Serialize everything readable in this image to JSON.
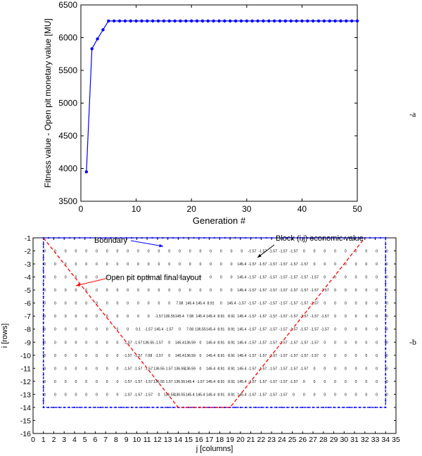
{
  "chart_data": [
    {
      "type": "line",
      "xlabel": "Generation #",
      "ylabel": "Fitness value - Open pit monetary value [MU]",
      "xlim": [
        0,
        50
      ],
      "ylim": [
        3500,
        6500
      ],
      "xticks": [
        0,
        10,
        20,
        30,
        40,
        50
      ],
      "yticks": [
        3500,
        4000,
        4500,
        5000,
        5500,
        6000,
        6500
      ],
      "grid": false,
      "panel_label": "-a",
      "series": [
        {
          "color": "#0000ff",
          "marker": "dot",
          "x": [
            1,
            2,
            3,
            4,
            5,
            6,
            7,
            8,
            9,
            10,
            11,
            12,
            13,
            14,
            15,
            16,
            17,
            18,
            19,
            20,
            21,
            22,
            23,
            24,
            25,
            26,
            27,
            28,
            29,
            30,
            31,
            32,
            33,
            34,
            35,
            36,
            37,
            38,
            39,
            40,
            41,
            42,
            43,
            44,
            45,
            46,
            47,
            48,
            49,
            50
          ],
          "y": [
            3950,
            5830,
            5980,
            6120,
            6255,
            6255,
            6255,
            6255,
            6255,
            6255,
            6255,
            6255,
            6255,
            6255,
            6255,
            6255,
            6255,
            6255,
            6255,
            6255,
            6255,
            6255,
            6255,
            6255,
            6255,
            6255,
            6255,
            6255,
            6255,
            6255,
            6255,
            6255,
            6255,
            6255,
            6255,
            6255,
            6255,
            6255,
            6255,
            6255,
            6255,
            6255,
            6255,
            6255,
            6255,
            6255,
            6255,
            6255,
            6255,
            6255
          ]
        }
      ]
    },
    {
      "type": "scatter",
      "xlabel": "j [columns]",
      "ylabel": "i [rows]",
      "xlim": [
        0,
        35
      ],
      "ylim": [
        -16,
        -1
      ],
      "xticks": [
        0,
        1,
        2,
        3,
        4,
        5,
        6,
        7,
        8,
        9,
        10,
        11,
        12,
        13,
        14,
        15,
        16,
        17,
        18,
        19,
        20,
        21,
        22,
        23,
        24,
        25,
        26,
        27,
        28,
        29,
        30,
        31,
        32,
        33,
        34,
        35
      ],
      "yticks": [
        -1,
        -2,
        -3,
        -4,
        -5,
        -6,
        -7,
        -8,
        -9,
        -10,
        -11,
        -12,
        -13,
        -14,
        -15,
        -16
      ],
      "grid": false,
      "panel_label": "-b",
      "boundary": {
        "label": "Boundary",
        "color": "#0000ff",
        "j": [
          1,
          34
        ],
        "i": [
          -14,
          -1
        ]
      },
      "pit_outline": {
        "label": "Open pit optimal final layout",
        "color": "#ff0000",
        "points": [
          [
            1,
            -1
          ],
          [
            14,
            -14
          ],
          [
            19,
            -14
          ],
          [
            32,
            -1
          ]
        ]
      },
      "annotations": [
        {
          "text": "Boundary",
          "color": "#0000ff"
        },
        {
          "text": "Block (i,j) economic value",
          "color": "#000000"
        },
        {
          "text": "Open pit optimal final layout",
          "color": "#ff0000"
        }
      ],
      "cell_values": [
        {
          "row": -2,
          "j_start": 21,
          "values": [
            "-1.57",
            "-1.57",
            "-1.57",
            "-1.57",
            "-1.57",
            "0"
          ]
        },
        {
          "row": -3,
          "j_start": 20,
          "values": [
            "145.4",
            "-1.57",
            "-1.57",
            "-1.57",
            "-1.57",
            "-1.57",
            "-1.57",
            "0"
          ]
        },
        {
          "row": -4,
          "j_start": 20,
          "values": [
            "145.4",
            "-1.57",
            "-1.57",
            "-1.57",
            "-1.57",
            "-1.57",
            "-1.57",
            "-1.57",
            "0"
          ]
        },
        {
          "row": -5,
          "j_start": 20,
          "values": [
            "145.4",
            "-1.57",
            "-1.57",
            "-1.57",
            "-1.57",
            "-1.57",
            "-1.57",
            "-1.57",
            "-1.57",
            "0"
          ]
        },
        {
          "row": -6,
          "j_start": 14,
          "values": [
            "7.08",
            "145.4",
            "145.4",
            "8.91",
            "0",
            "145.4",
            "-1.57",
            "-1.57",
            "-1.57",
            "-1.57",
            "-1.57",
            "-1.57",
            "-1.57",
            "-1.57",
            "0"
          ]
        },
        {
          "row": -7,
          "j_start": 12,
          "values": [
            "-1.57",
            "136.55",
            "145.4",
            "7.08",
            "145.4",
            "145.4",
            "8.91",
            "8.91",
            "145.4",
            "-1.57",
            "-1.57",
            "-1.57",
            "-1.57",
            "-1.57",
            "-1.57",
            "-1.57",
            "-1.57",
            "0"
          ]
        },
        {
          "row": -8,
          "j_start": 10,
          "values": [
            "0.1",
            "-1.57",
            "145.4",
            "-1.57",
            "0",
            "7.08",
            "136.55",
            "145.4",
            "8.91",
            "8.91",
            "145.4",
            "-1.57",
            "-1.57",
            "-1.57",
            "-1.57",
            "-1.57",
            "-1.57",
            "-1.57",
            "-1.57",
            "0"
          ]
        },
        {
          "row": -9,
          "j_start": 9,
          "values": [
            "-1.57",
            "-1.57",
            "136.55",
            "-1.57",
            "0",
            "145.4",
            "136.59",
            "0",
            "145.4",
            "8.91",
            "8.91",
            "145.4",
            "-1.57",
            "-1.57",
            "-1.57",
            "-1.57",
            "-1.57",
            "-1.57",
            "-1.57",
            "0"
          ]
        },
        {
          "row": -10,
          "j_start": 9,
          "values": [
            "-1.57",
            "-1.57",
            "7.08",
            "-1.57",
            "0",
            "145.4",
            "136.59",
            "0",
            "145.4",
            "8.91",
            "8.91",
            "145.4",
            "-1.57",
            "-1.57",
            "-1.57",
            "-1.57",
            "-1.57",
            "-1.57",
            "-1.57",
            "0"
          ]
        },
        {
          "row": -11,
          "j_start": 9,
          "values": [
            "-1.57",
            "-1.57",
            "-1.57",
            "136.55",
            "1.57",
            "136.55",
            "136.59",
            "0",
            "145.4",
            "8.91",
            "8.91",
            "145.4",
            "-1.57",
            "-1.57",
            "-1.57",
            "-1.57",
            "-1.57",
            "-1.57",
            "0"
          ]
        },
        {
          "row": -12,
          "j_start": 9,
          "values": [
            "-1.57",
            "-1.57",
            "-1.57",
            "136.55",
            "1.57",
            "136.55",
            "145.4",
            "-1.57",
            "145.4",
            "8.91",
            "8.91",
            "145.4",
            "-1.57",
            "-1.57",
            "-1.57",
            "-1.57",
            "-1.57",
            "0"
          ]
        },
        {
          "row": -13,
          "j_start": 9,
          "values": [
            "-1.57",
            "-1.57",
            "-1.57",
            "0",
            "136.55",
            "136.55",
            "145.4",
            "145.4",
            "145.4",
            "8.91",
            "8.91",
            "145.4",
            "-1.57",
            "-1.57",
            "-1.57",
            "-1.57",
            "0"
          ]
        }
      ]
    }
  ]
}
